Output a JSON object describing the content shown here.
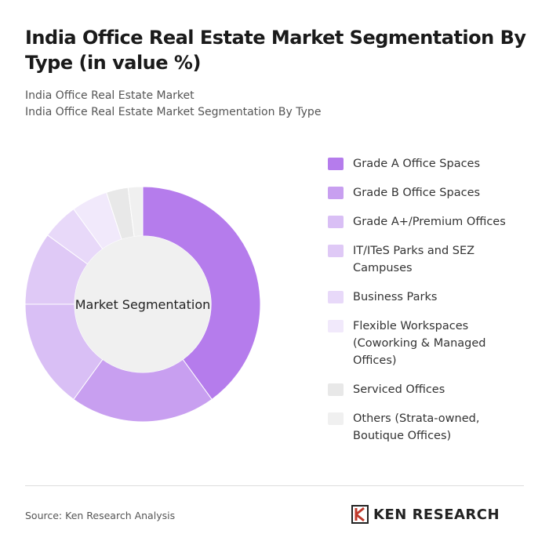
{
  "chart_data": {
    "type": "donut",
    "title": "India Office Real Estate Market Segmentation By Type (in value %)",
    "subtitle": [
      "India Office Real Estate Market",
      "India Office Real Estate Market Segmentation By Type"
    ],
    "center_label": "Market Segmentation",
    "categories": [
      "Grade A Office Spaces",
      "Grade B Office Spaces",
      "Grade A+/Premium Offices",
      "IT/ITeS Parks and SEZ Campuses",
      "Business Parks",
      "Flexible Workspaces (Coworking & Managed Offices)",
      "Serviced Offices",
      "Others (Strata-owned, Boutique Offices)"
    ],
    "values": [
      40,
      20,
      15,
      10,
      5,
      5,
      3,
      2
    ],
    "colors": [
      "#b57cec",
      "#c89ff0",
      "#d9bff5",
      "#dfc9f6",
      "#e8d9f9",
      "#f1e9fb",
      "#e8e8e8",
      "#f0f0f0"
    ],
    "source": "Source: Ken Research Analysis",
    "brand": "KEN RESEARCH"
  }
}
